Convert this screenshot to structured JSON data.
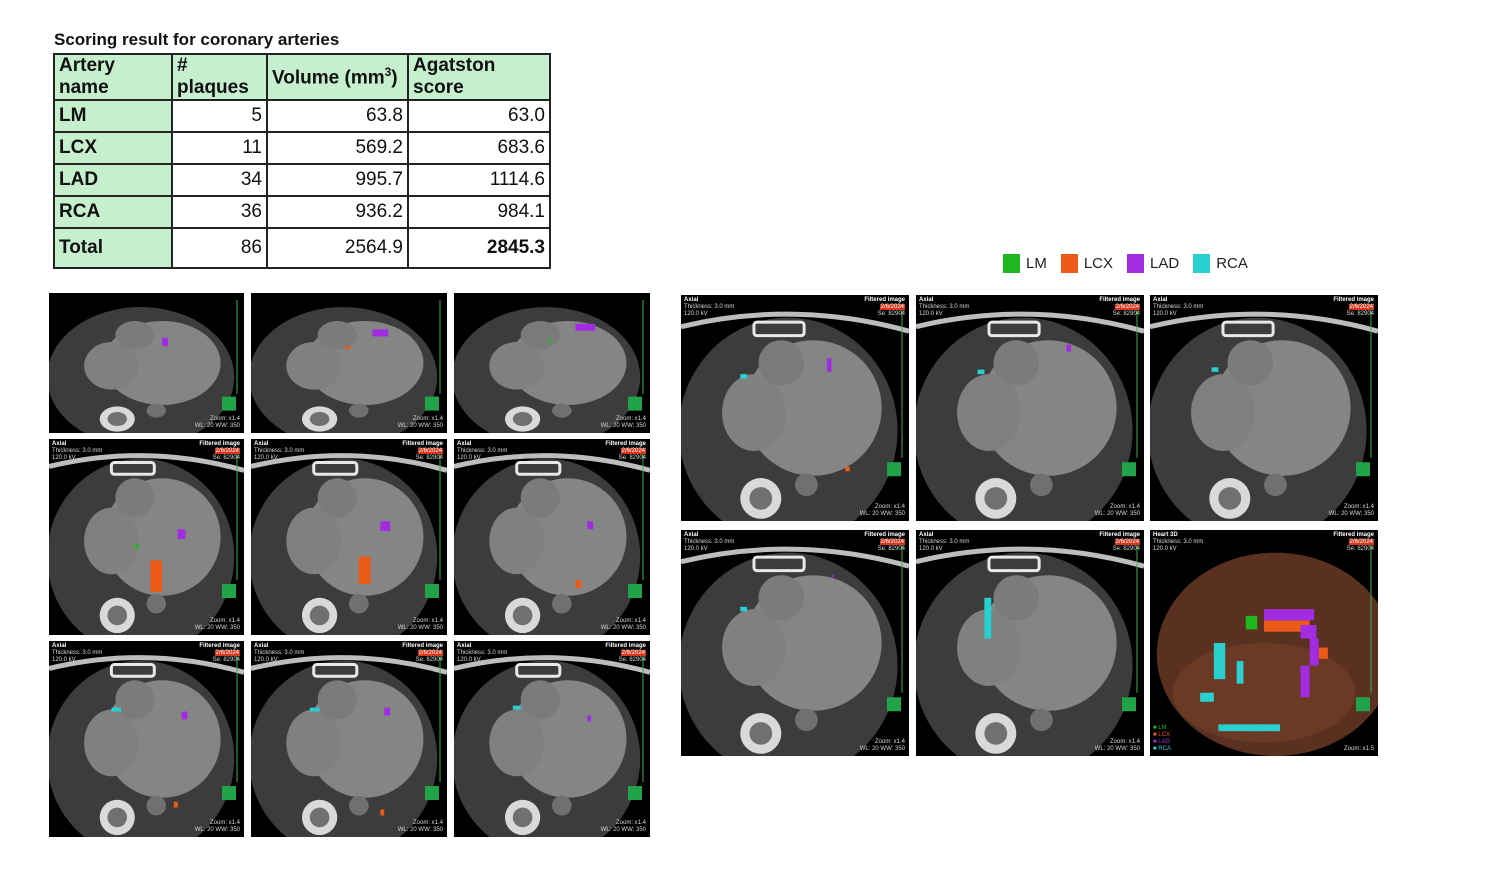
{
  "title": "Scoring result for coronary arteries",
  "table": {
    "headers": [
      "Artery name",
      "# plaques",
      "Volume (mm",
      "3",
      ")",
      "Agatston score"
    ],
    "rows": [
      {
        "name": "LM",
        "plaques": "5",
        "volume": "63.8",
        "agatston": "63.0"
      },
      {
        "name": "LCX",
        "plaques": "11",
        "volume": "569.2",
        "agatston": "683.6"
      },
      {
        "name": "LAD",
        "plaques": "34",
        "volume": "995.7",
        "agatston": "1114.6"
      },
      {
        "name": "RCA",
        "plaques": "36",
        "volume": "936.2",
        "agatston": "984.1"
      }
    ],
    "total": {
      "name": "Total",
      "plaques": "86",
      "volume": "2564.9",
      "agatston": "2845.3"
    }
  },
  "legend": [
    {
      "label": "LM",
      "color": "#1fb81f"
    },
    {
      "label": "LCX",
      "color": "#ec5a17"
    },
    {
      "label": "LAD",
      "color": "#a12ce0"
    },
    {
      "label": "RCA",
      "color": "#2ad0d0"
    }
  ],
  "viewer": {
    "axial_label": "Axial",
    "heart3d_label": "Heart 3D",
    "filtered_label": "Filtered image",
    "date": "2/6/2024",
    "thickness": "Thickness: 3.0 mm",
    "kv": "120.0 kV",
    "series": "Se: 82904",
    "zoom": "Zoom: x1.4",
    "zoom3d": "Zoom: x1.5",
    "window": "WL: 20  WW: 350",
    "scale": "10 mm/div",
    "legend3d": [
      "LM",
      "LCX",
      "LAD",
      "RCA"
    ]
  }
}
